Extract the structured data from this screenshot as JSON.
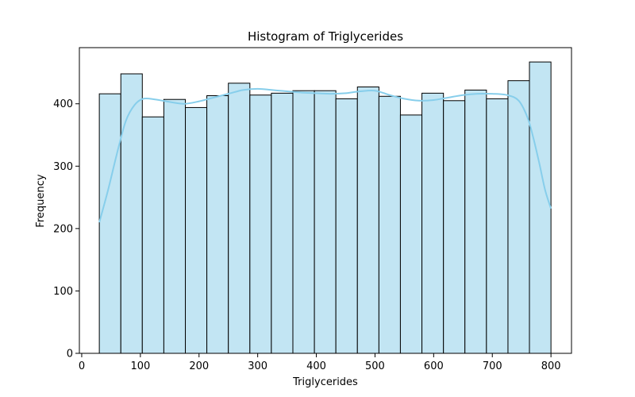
{
  "chart_data": {
    "type": "bar",
    "title": "Histogram of Triglycerides",
    "xlabel": "Triglycerides",
    "ylabel": "Frequency",
    "xlim": [
      -4,
      835
    ],
    "ylim": [
      0,
      490
    ],
    "x_ticks": [
      0,
      100,
      200,
      300,
      400,
      500,
      600,
      700,
      800
    ],
    "y_ticks": [
      0,
      100,
      200,
      300,
      400
    ],
    "bin_edges": [
      30,
      66.7,
      103.3,
      140,
      176.7,
      213.3,
      250,
      286.7,
      323.3,
      360,
      396.7,
      433.3,
      470,
      506.7,
      543.3,
      580,
      616.7,
      653.3,
      690,
      726.7,
      763.3,
      800
    ],
    "values": [
      416,
      448,
      379,
      407,
      394,
      413,
      433,
      414,
      417,
      421,
      421,
      408,
      427,
      412,
      382,
      417,
      405,
      422,
      408,
      437,
      467
    ],
    "kde": {
      "x": [
        30,
        45,
        60,
        75,
        90,
        105,
        125,
        150,
        175,
        200,
        225,
        250,
        275,
        300,
        325,
        350,
        375,
        400,
        425,
        450,
        475,
        500,
        525,
        550,
        575,
        600,
        625,
        650,
        675,
        700,
        725,
        745,
        760,
        770,
        780,
        790,
        800
      ],
      "y": [
        210,
        262,
        320,
        372,
        398,
        408,
        407,
        403,
        400,
        404,
        410,
        416,
        422,
        424,
        422,
        420,
        418,
        417,
        416,
        417,
        420,
        421,
        414,
        408,
        405,
        406,
        410,
        414,
        416,
        416,
        414,
        405,
        378,
        345,
        305,
        262,
        232
      ]
    },
    "grid": false,
    "colors": {
      "bar_fill": "#c2e5f3",
      "bar_edge": "#000000",
      "kde_line": "#87ceeb"
    }
  }
}
